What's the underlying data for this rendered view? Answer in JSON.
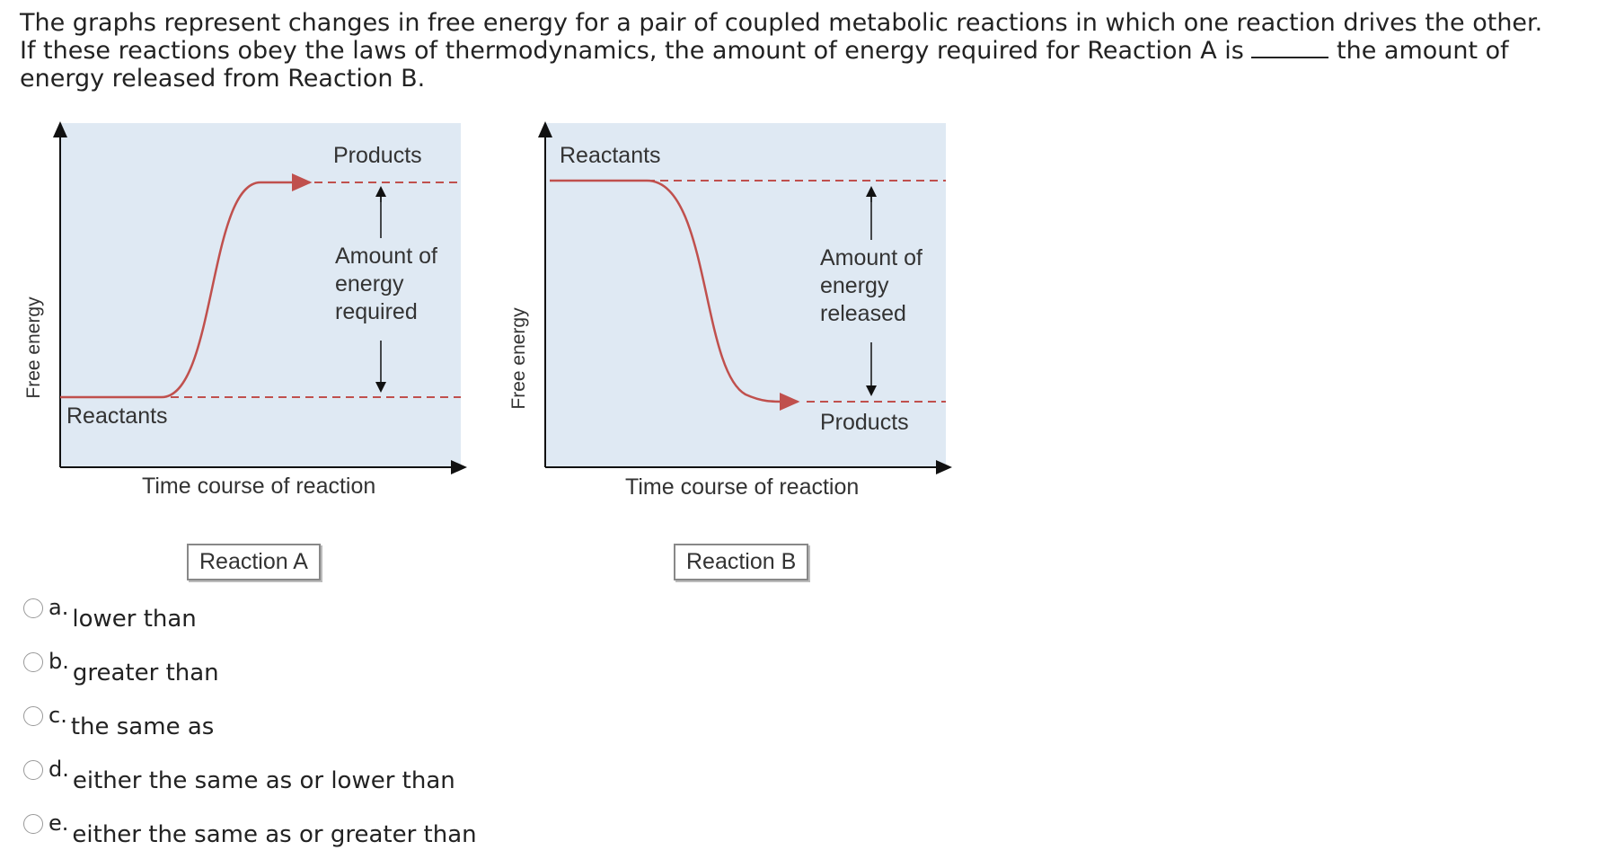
{
  "question": {
    "text_before": "The graphs represent changes in free energy for a pair of coupled metabolic reactions in which one reaction drives the other. If these reactions obey the laws of thermodynamics, the amount of energy required for Reaction A is",
    "text_after": "the amount of energy released from Reaction B."
  },
  "figure": {
    "reaction_a": {
      "ylabel": "Free energy",
      "xlabel": "Time course of reaction",
      "top_label": "Products",
      "bottom_label": "Reactants",
      "energy_label": [
        "Amount of",
        "energy",
        "required"
      ],
      "caption": "Reaction A"
    },
    "reaction_b": {
      "ylabel": "Free energy",
      "xlabel": "Time course of reaction",
      "top_label": "Reactants",
      "bottom_label": "Products",
      "energy_label": [
        "Amount of",
        "energy",
        "released"
      ],
      "caption": "Reaction B"
    },
    "colors": {
      "plot_bg": "#dfe9f3",
      "curve": "#c0504d",
      "axis": "#111111"
    }
  },
  "options": [
    {
      "letter": "a.",
      "text": "lower than"
    },
    {
      "letter": "b.",
      "text": "greater than"
    },
    {
      "letter": "c.",
      "text": "the same as"
    },
    {
      "letter": "d.",
      "text": "either the same as or lower than"
    },
    {
      "letter": "e.",
      "text": "either the same as or greater than"
    }
  ]
}
